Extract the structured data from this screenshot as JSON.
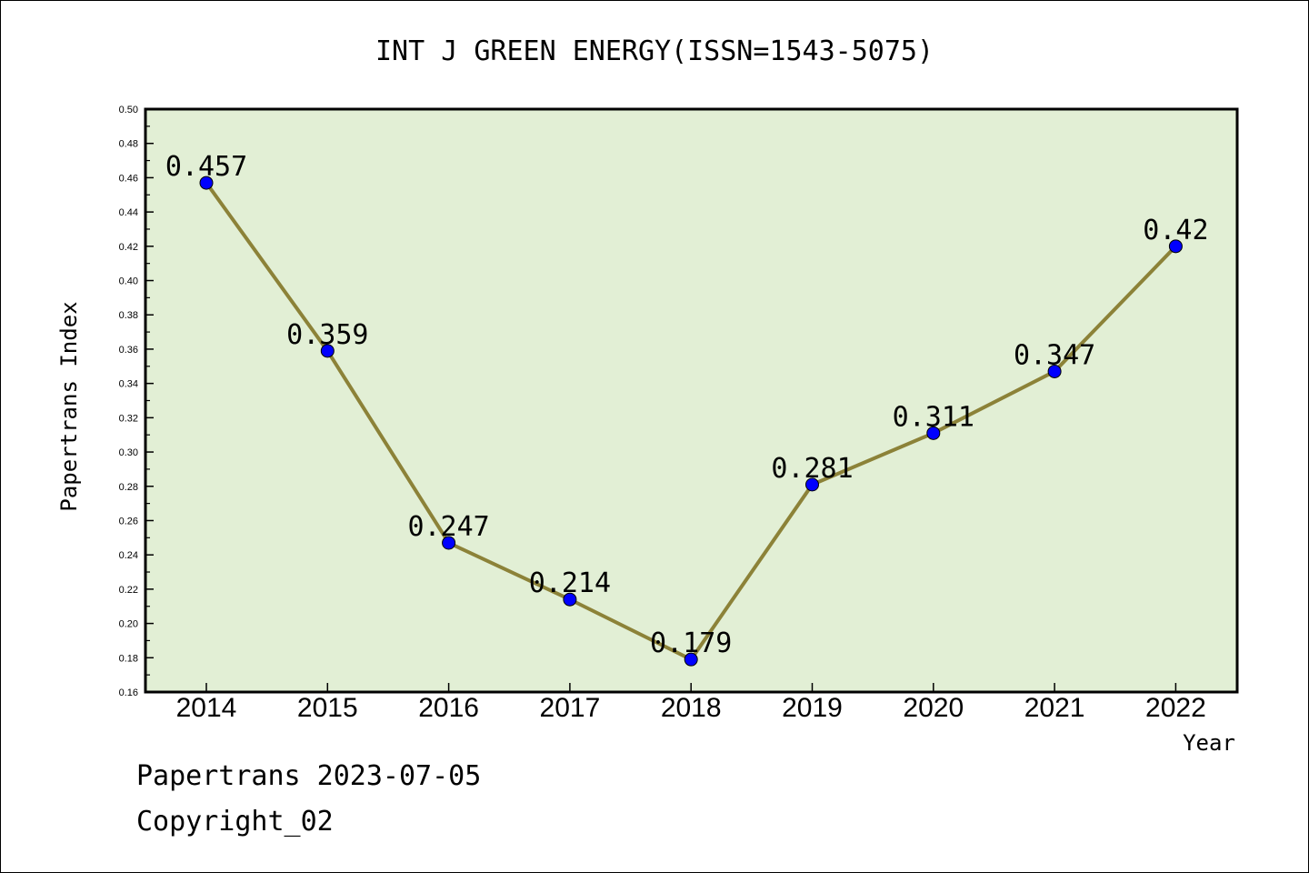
{
  "chart_data": {
    "type": "line",
    "title": "INT J GREEN ENERGY(ISSN=1543-5075)",
    "xlabel": "Year",
    "ylabel": "Papertrans Index",
    "categories": [
      "2014",
      "2015",
      "2016",
      "2017",
      "2018",
      "2019",
      "2020",
      "2021",
      "2022"
    ],
    "values": [
      0.457,
      0.359,
      0.247,
      0.214,
      0.179,
      0.281,
      0.311,
      0.347,
      0.42
    ],
    "data_labels": [
      "0.457",
      "0.359",
      "0.247",
      "0.214",
      "0.179",
      "0.281",
      "0.311",
      "0.347",
      "0.42"
    ],
    "ylim": [
      0.16,
      0.5
    ],
    "yticks": [
      "0.16",
      "0.18",
      "0.20",
      "0.22",
      "0.24",
      "0.26",
      "0.28",
      "0.30",
      "0.32",
      "0.34",
      "0.36",
      "0.38",
      "0.40",
      "0.42",
      "0.44",
      "0.46",
      "0.48",
      "0.50"
    ],
    "grid": false,
    "colors": {
      "plot_background": "#e2efd5",
      "line": "#8c8238",
      "marker": "#0000ff"
    }
  },
  "footer": {
    "line1": "Papertrans 2023-07-05",
    "line2": "Copyright_02"
  }
}
